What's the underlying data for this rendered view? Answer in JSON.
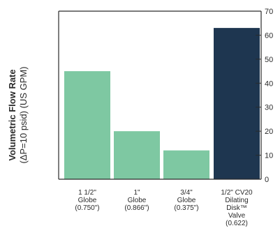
{
  "chart_data": {
    "type": "bar",
    "ylabel": "Volumetric Flow Rate",
    "ylabel_sub": "(ΔP=10 psid) (US GPM)",
    "ylim": [
      0,
      70
    ],
    "yticks": [
      0,
      10,
      20,
      30,
      40,
      50,
      60,
      70
    ],
    "categories": [
      [
        "1 1/2\"",
        "Globe",
        "(0.750\")"
      ],
      [
        "1\"",
        "Globe",
        "(0.866\")"
      ],
      [
        "3/4\"",
        "Globe",
        "(0.375\")"
      ],
      [
        "1/2\" CV20",
        "Dilating",
        "Disk™",
        "Valve",
        "(0.622)"
      ]
    ],
    "values": [
      45,
      20,
      12,
      63
    ],
    "colors": [
      "#7ec8a2",
      "#7ec8a2",
      "#7ec8a2",
      "#1e3650"
    ],
    "grid": false
  }
}
